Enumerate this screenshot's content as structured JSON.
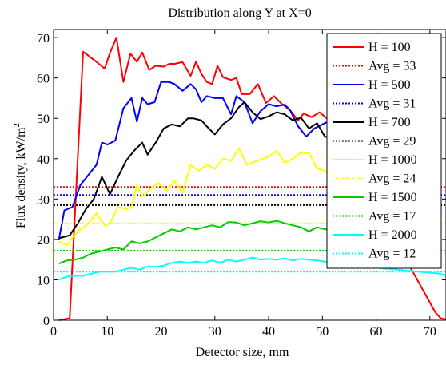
{
  "chart_data": {
    "type": "line",
    "title": "Distribution along Y at X=0",
    "xlabel": "Detector size, mm",
    "ylabel": "Flux density, kW/m",
    "ylabel_sup": "2",
    "xlim": [
      0,
      73
    ],
    "ylim": [
      0,
      72
    ],
    "xticks": [
      0,
      10,
      20,
      30,
      40,
      50,
      60,
      70
    ],
    "yticks": [
      0,
      10,
      20,
      30,
      40,
      50,
      60,
      70
    ],
    "grid": false,
    "legend_position": "top-right",
    "series": [
      {
        "name": "H = 100",
        "color": "#ff0000",
        "style": "solid",
        "x": [
          1,
          3,
          5.5,
          7.5,
          9.5,
          10.5,
          11.7,
          13,
          14.3,
          15.5,
          16.5,
          17.8,
          19,
          20.5,
          21.5,
          22.5,
          24,
          25.5,
          26.5,
          27.5,
          28.5,
          29.5,
          30.5,
          31.5,
          33,
          34,
          35,
          36.5,
          38,
          39.5,
          41,
          42.5,
          44,
          45.5,
          46.5,
          48,
          49.5,
          51,
          52,
          71,
          72,
          73
        ],
        "y": [
          0,
          0.5,
          66.5,
          64.5,
          62.3,
          66.2,
          70,
          59,
          66,
          64,
          66.3,
          62,
          63,
          62.8,
          63.5,
          63.5,
          63.9,
          60.5,
          64,
          61,
          59,
          58.5,
          63,
          60.2,
          59.5,
          60,
          56,
          56,
          58.5,
          53.8,
          55.5,
          53.5,
          52,
          49.5,
          51.2,
          50.3,
          51.5,
          49.8,
          47.5,
          2,
          0.5,
          0.2
        ]
      },
      {
        "name": "Avg = 33",
        "color": "#ff0000",
        "style": "dotted",
        "x": [
          0,
          73
        ],
        "y": [
          33,
          33
        ]
      },
      {
        "name": "H = 500",
        "color": "#0000ff",
        "style": "solid",
        "x": [
          1,
          2,
          3.5,
          5,
          6.5,
          8,
          9,
          10,
          11.5,
          13,
          14.5,
          15.5,
          16.5,
          17.5,
          18.8,
          20,
          21.5,
          22.5,
          24,
          25.5,
          26.5,
          27.5,
          28.5,
          30,
          31.5,
          33,
          34,
          35.5,
          37,
          38.5,
          40,
          41.5,
          43,
          44,
          45.5,
          47,
          48.5,
          50,
          51.5,
          52.5
        ],
        "y": [
          20,
          27.2,
          28,
          33.5,
          36,
          38.5,
          44,
          43.5,
          44.5,
          52.5,
          55,
          49.2,
          55,
          53.5,
          54,
          59,
          59,
          58.5,
          56.8,
          58.5,
          57.2,
          54,
          55.5,
          55,
          55,
          51,
          55.5,
          54,
          48.8,
          51.8,
          53.5,
          53,
          53.4,
          52,
          48,
          45.5,
          47.5,
          48.5,
          49.5,
          48.5
        ]
      },
      {
        "name": "Avg = 31",
        "color": "#0000ff",
        "style": "dotted",
        "x": [
          0,
          73
        ],
        "y": [
          31,
          31
        ]
      },
      {
        "name": "H = 700",
        "color": "#000000",
        "style": "solid",
        "x": [
          1,
          3,
          4.5,
          6,
          7.5,
          9,
          10.5,
          12,
          13.5,
          15,
          16.5,
          17.5,
          19,
          20.5,
          22,
          23.5,
          25,
          26,
          27.5,
          28.5,
          30,
          31.5,
          33,
          34.5,
          35.5,
          37,
          38.5,
          40,
          41.5,
          43,
          44.5,
          46,
          47.5,
          49,
          50.5,
          51.5
        ],
        "y": [
          20.3,
          21,
          24,
          27.5,
          30,
          35.5,
          31.2,
          35.5,
          39.5,
          42,
          44,
          41,
          44,
          47.5,
          48.5,
          48,
          50,
          50,
          49.5,
          48,
          46,
          48.5,
          50,
          52.8,
          54,
          51.5,
          49.8,
          50.5,
          51.5,
          51,
          49.5,
          50.2,
          47.5,
          48.8,
          45.4,
          45.4
        ]
      },
      {
        "name": "Avg = 29",
        "color": "#000000",
        "style": "dotted",
        "x": [
          0,
          73
        ],
        "y": [
          28.5,
          28.5
        ]
      },
      {
        "name": "H = 1000",
        "color": "#ffff00",
        "style": "solid",
        "x": [
          1,
          2.5,
          3.5,
          5,
          6.5,
          8,
          9.5,
          10.5,
          12,
          13.5,
          14.5,
          15.5,
          16.5,
          18,
          19.5,
          21,
          22.5,
          24,
          25.5,
          27,
          28.5,
          30,
          31.5,
          33,
          34.5,
          36,
          37,
          38.5,
          40,
          41.5,
          43,
          44.5,
          46,
          47.5,
          49,
          50.5,
          52
        ],
        "y": [
          19.5,
          18.5,
          20.5,
          22.5,
          24,
          26.5,
          23.5,
          24,
          28,
          27.5,
          28,
          33.5,
          30.5,
          32.5,
          34,
          32,
          34.5,
          31.5,
          38.5,
          37,
          38.5,
          37.5,
          40,
          39.5,
          42.5,
          38.5,
          39,
          39.8,
          40.5,
          42,
          39,
          40,
          41.5,
          41.5,
          37.5,
          37,
          34
        ]
      },
      {
        "name": "Avg = 24",
        "color": "#ffff00",
        "style": "dotted",
        "x": [
          0,
          73
        ],
        "y": [
          24,
          24
        ]
      },
      {
        "name": "H = 1500",
        "color": "#00cc00",
        "style": "solid",
        "x": [
          1,
          2.5,
          4,
          5.5,
          7,
          8.5,
          10,
          11.5,
          13,
          14.5,
          16,
          17.5,
          19,
          20.5,
          22,
          23.5,
          25,
          26.5,
          28,
          29.5,
          31,
          32.5,
          34,
          35.5,
          37,
          38.5,
          40,
          41.5,
          43,
          44.5,
          46,
          47.5,
          49,
          50.5,
          52
        ],
        "y": [
          14,
          14.8,
          15,
          15.5,
          16.5,
          17,
          17.5,
          18,
          17.5,
          19.5,
          19,
          19.5,
          20.5,
          21.5,
          22.5,
          22,
          23,
          22.5,
          23,
          23.5,
          23,
          24.3,
          24.2,
          23.5,
          24,
          24.5,
          24.2,
          24.6,
          24,
          23.5,
          23,
          22,
          23,
          22.5,
          22.5
        ]
      },
      {
        "name": "Avg = 17",
        "color": "#00cc00",
        "style": "dotted",
        "x": [
          0,
          73
        ],
        "y": [
          17.2,
          17.2
        ]
      },
      {
        "name": "H = 2000",
        "color": "#00ffff",
        "style": "solid",
        "x": [
          1,
          2.5,
          4,
          5.5,
          7,
          8.5,
          10,
          11.5,
          13,
          14.5,
          16,
          17.5,
          19,
          20.5,
          22,
          23.5,
          25,
          26.5,
          28,
          29.5,
          31,
          32.5,
          34,
          35.5,
          37,
          38.5,
          40,
          41.5,
          43,
          44.5,
          46,
          47.5,
          49,
          50.5,
          52,
          72,
          73
        ],
        "y": [
          10,
          10.8,
          11,
          11,
          11.5,
          12,
          12,
          12,
          12.5,
          13,
          12.5,
          13.3,
          13.2,
          13.5,
          14.2,
          14.5,
          14.2,
          14.5,
          14.2,
          14.8,
          14.2,
          15,
          14.5,
          15,
          15.5,
          15,
          15.2,
          15,
          15.3,
          14.8,
          15.2,
          15,
          14.8,
          14.5,
          14,
          11.5,
          11
        ]
      },
      {
        "name": "Avg = 12",
        "color": "#00ffff",
        "style": "dotted",
        "x": [
          0,
          73
        ],
        "y": [
          12,
          12
        ]
      }
    ]
  }
}
